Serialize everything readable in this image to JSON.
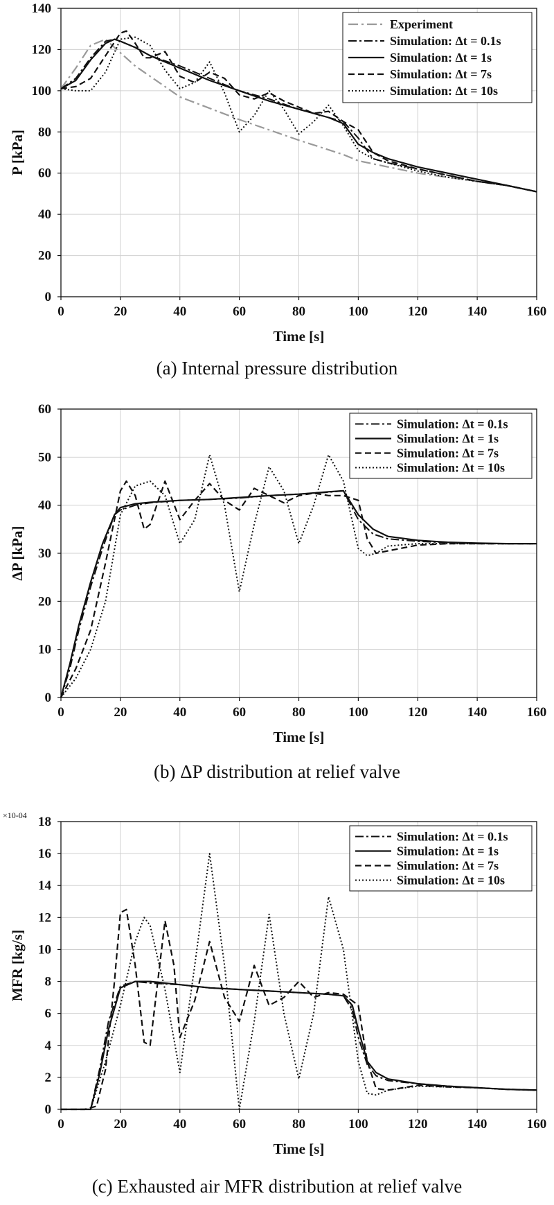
{
  "chart_data": [
    {
      "type": "line",
      "title": "",
      "caption": "(a) Internal pressure distribution",
      "xlabel": "Time  [s]",
      "ylabel": "P [kPa]",
      "xlim": [
        0,
        160
      ],
      "ylim": [
        0,
        140
      ],
      "xticks": [
        0,
        20,
        40,
        60,
        80,
        100,
        120,
        140,
        160
      ],
      "yticks": [
        0,
        20,
        40,
        60,
        80,
        100,
        120,
        140
      ],
      "grid": true,
      "legend_position": "top-right",
      "series": [
        {
          "name": "Experiment",
          "style": "dashdot-gray",
          "x": [
            0,
            5,
            10,
            15,
            18,
            25,
            40,
            60,
            80,
            95,
            100,
            110,
            120,
            130,
            140,
            150,
            160
          ],
          "y": [
            101,
            111,
            122,
            125,
            121,
            112,
            97,
            86,
            76,
            69,
            66,
            63,
            60,
            58,
            56,
            54,
            51
          ]
        },
        {
          "name": "Simulation: Δt = 0.1s",
          "style": "dashdot-black",
          "x": [
            0,
            5,
            10,
            15,
            18,
            20,
            25,
            30,
            40,
            50,
            60,
            70,
            80,
            90,
            95,
            100,
            105,
            110,
            120,
            130,
            140,
            150,
            160
          ],
          "y": [
            101,
            106,
            116,
            124,
            125,
            124,
            121,
            117,
            112,
            106,
            100,
            96,
            91,
            87,
            85,
            77,
            67,
            65,
            62,
            59,
            56,
            54,
            51
          ]
        },
        {
          "name": "Simulation: Δt = 1s",
          "style": "solid-black",
          "x": [
            0,
            5,
            10,
            15,
            18,
            20,
            25,
            30,
            40,
            50,
            60,
            70,
            80,
            90,
            95,
            100,
            105,
            110,
            120,
            130,
            140,
            150,
            160
          ],
          "y": [
            101,
            105,
            115,
            123,
            125,
            124,
            121,
            117,
            111,
            105,
            100,
            95,
            91,
            87,
            84,
            74,
            70,
            67,
            63,
            60,
            57,
            54,
            51
          ]
        },
        {
          "name": "Simulation: Δt = 7s",
          "style": "dashed-black",
          "x": [
            0,
            5,
            10,
            15,
            20,
            22,
            25,
            28,
            30,
            35,
            40,
            45,
            50,
            55,
            60,
            65,
            70,
            75,
            80,
            85,
            90,
            95,
            100,
            105,
            110,
            120,
            130,
            140,
            150,
            160
          ],
          "y": [
            101,
            102,
            106,
            117,
            128,
            129,
            123,
            116,
            116,
            119,
            107,
            104,
            109,
            106,
            98,
            96,
            99,
            95,
            92,
            89,
            90,
            85,
            81,
            70,
            66,
            62,
            59,
            56,
            54,
            51
          ]
        },
        {
          "name": "Simulation: Δt = 10s",
          "style": "dotted-black",
          "x": [
            0,
            5,
            10,
            15,
            20,
            25,
            30,
            35,
            40,
            45,
            50,
            55,
            60,
            65,
            70,
            75,
            80,
            85,
            90,
            95,
            100,
            105,
            110,
            120,
            130,
            140,
            150,
            160
          ],
          "y": [
            101,
            100,
            100,
            109,
            125,
            126,
            122,
            110,
            101,
            104,
            114,
            99,
            80,
            88,
            100,
            91,
            79,
            85,
            93,
            83,
            71,
            67,
            65,
            61,
            58,
            56,
            54,
            51
          ]
        }
      ]
    },
    {
      "type": "line",
      "title": "",
      "caption": "(b) ΔP distribution at relief valve",
      "xlabel": "Time  [s]",
      "ylabel": "ΔP [kPa]",
      "xlim": [
        0,
        160
      ],
      "ylim": [
        0,
        60
      ],
      "xticks": [
        0,
        20,
        40,
        60,
        80,
        100,
        120,
        140,
        160
      ],
      "yticks": [
        0,
        10,
        20,
        30,
        40,
        50,
        60
      ],
      "grid": true,
      "legend_position": "top-right",
      "series": [
        {
          "name": "Simulation: Δt = 0.1s",
          "style": "dashdot-black",
          "x": [
            0,
            3,
            6,
            10,
            14,
            18,
            20,
            25,
            30,
            40,
            50,
            60,
            70,
            80,
            90,
            95,
            100,
            105,
            110,
            120,
            130,
            140,
            150,
            160
          ],
          "y": [
            0,
            6,
            14,
            23,
            31,
            38,
            39,
            40,
            40.5,
            41,
            41.2,
            41.5,
            42,
            42.3,
            42.7,
            43,
            37,
            34,
            33,
            32.5,
            32.2,
            32,
            32,
            32
          ]
        },
        {
          "name": "Simulation: Δt = 1s",
          "style": "solid-black",
          "x": [
            0,
            3,
            6,
            10,
            14,
            18,
            20,
            25,
            30,
            40,
            50,
            60,
            70,
            80,
            90,
            95,
            100,
            105,
            110,
            120,
            130,
            140,
            150,
            160
          ],
          "y": [
            0,
            7,
            15,
            24,
            32,
            38,
            39.5,
            40.3,
            40.6,
            41,
            41.2,
            41.6,
            42,
            42.3,
            42.8,
            43,
            38,
            35,
            33.5,
            32.7,
            32.3,
            32.1,
            32,
            32
          ]
        },
        {
          "name": "Simulation: Δt = 7s",
          "style": "dashed-black",
          "x": [
            0,
            5,
            10,
            15,
            18,
            20,
            22,
            25,
            28,
            30,
            35,
            40,
            45,
            50,
            55,
            60,
            65,
            70,
            75,
            80,
            85,
            90,
            95,
            100,
            103,
            106,
            110,
            120,
            130,
            140,
            150,
            160
          ],
          "y": [
            0,
            6,
            14,
            28,
            37,
            43,
            45,
            42,
            35,
            36,
            45,
            37,
            41,
            44.5,
            41,
            39,
            43.5,
            42,
            40.5,
            42,
            42.5,
            42,
            42,
            41,
            33,
            30,
            30.5,
            31.7,
            32,
            32,
            32,
            32
          ]
        },
        {
          "name": "Simulation: Δt = 10s",
          "style": "dotted-black",
          "x": [
            0,
            5,
            10,
            15,
            20,
            25,
            30,
            35,
            40,
            45,
            50,
            55,
            60,
            65,
            70,
            75,
            80,
            85,
            90,
            95,
            100,
            103,
            106,
            110,
            120,
            130,
            140,
            150,
            160
          ],
          "y": [
            0,
            4,
            10,
            20,
            38,
            44,
            45,
            42,
            32,
            37,
            50.5,
            40,
            22,
            36,
            48,
            43,
            32,
            40,
            50.5,
            45,
            31,
            29.5,
            30,
            31.5,
            32,
            32,
            32,
            32,
            32
          ]
        }
      ]
    },
    {
      "type": "line",
      "title": "",
      "caption": "(c) Exhausted air MFR distribution at relief valve",
      "xlabel": "Time  [s]",
      "ylabel": "MFR [kg/s]",
      "y_multiplier_label": "×10-04",
      "xlim": [
        0,
        160
      ],
      "ylim": [
        0,
        18
      ],
      "xticks": [
        0,
        20,
        40,
        60,
        80,
        100,
        120,
        140,
        160
      ],
      "yticks": [
        0,
        2,
        4,
        6,
        8,
        10,
        12,
        14,
        16,
        18
      ],
      "grid": true,
      "legend_position": "top-right",
      "series": [
        {
          "name": "Simulation: Δt = 0.1s",
          "style": "dashdot-black",
          "x": [
            0,
            8,
            10,
            13,
            16,
            20,
            25,
            30,
            40,
            50,
            60,
            70,
            80,
            90,
            95,
            98,
            100,
            103,
            106,
            110,
            120,
            130,
            140,
            150,
            160
          ],
          "y": [
            0,
            0,
            0,
            2.5,
            5.5,
            7.7,
            8,
            7.9,
            7.8,
            7.6,
            7.5,
            7.4,
            7.3,
            7.2,
            7.1,
            6.2,
            4.5,
            2.8,
            2.1,
            1.8,
            1.6,
            1.45,
            1.35,
            1.25,
            1.2
          ]
        },
        {
          "name": "Simulation: Δt = 1s",
          "style": "solid-black",
          "x": [
            0,
            8,
            10,
            13,
            16,
            20,
            25,
            30,
            40,
            50,
            60,
            70,
            80,
            90,
            95,
            98,
            100,
            103,
            106,
            110,
            120,
            130,
            140,
            150,
            160
          ],
          "y": [
            0,
            0,
            0,
            2.2,
            5,
            7.6,
            8,
            8,
            7.8,
            7.6,
            7.5,
            7.4,
            7.3,
            7.2,
            7.1,
            6.5,
            5,
            3,
            2.3,
            1.9,
            1.6,
            1.45,
            1.35,
            1.25,
            1.2
          ]
        },
        {
          "name": "Simulation: Δt = 7s",
          "style": "dashed-black",
          "x": [
            0,
            8,
            12,
            15,
            18,
            20,
            22,
            25,
            28,
            30,
            35,
            38,
            40,
            45,
            50,
            55,
            60,
            65,
            70,
            75,
            80,
            85,
            90,
            95,
            100,
            103,
            106,
            110,
            120,
            130,
            140,
            150,
            160
          ],
          "y": [
            0,
            0,
            0.2,
            2.5,
            8,
            12.3,
            12.5,
            9,
            4.2,
            4,
            11.8,
            9,
            4.5,
            6.8,
            10.5,
            7,
            5.5,
            9,
            6.5,
            7,
            8,
            7,
            7.3,
            7.2,
            6.5,
            3,
            1.3,
            1.2,
            1.5,
            1.4,
            1.35,
            1.25,
            1.2
          ]
        },
        {
          "name": "Simulation: Δt = 10s",
          "style": "dotted-black",
          "x": [
            0,
            8,
            10,
            15,
            20,
            25,
            28,
            30,
            35,
            40,
            45,
            50,
            55,
            60,
            65,
            70,
            75,
            80,
            85,
            90,
            95,
            100,
            103,
            106,
            110,
            120,
            130,
            140,
            150,
            160
          ],
          "y": [
            0,
            0,
            0,
            3,
            6.5,
            10.5,
            12,
            11.5,
            7.5,
            2.3,
            9,
            16,
            9,
            0,
            5.5,
            12.2,
            6,
            1.9,
            6,
            13.3,
            10,
            3,
            1,
            0.9,
            1.2,
            1.45,
            1.4,
            1.35,
            1.25,
            1.2
          ]
        }
      ]
    }
  ]
}
